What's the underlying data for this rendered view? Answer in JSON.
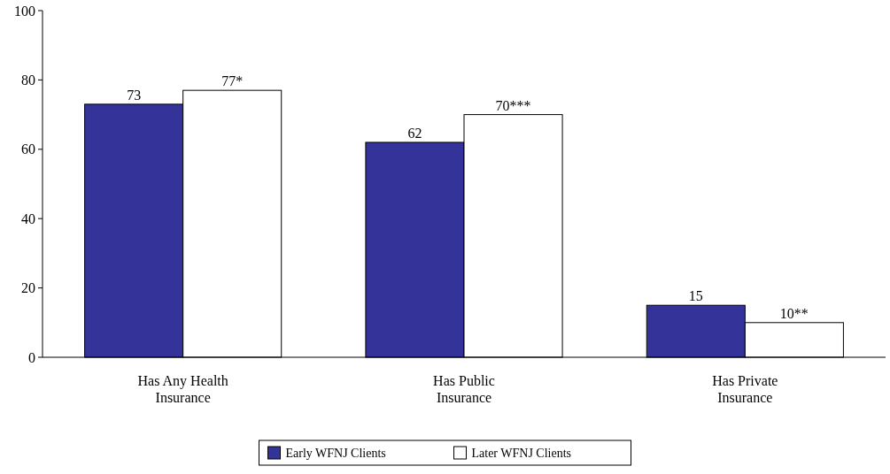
{
  "chart_data": {
    "type": "bar",
    "categories": [
      "Has Any Health Insurance",
      "Has Public Insurance",
      "Has Private Insurance"
    ],
    "series": [
      {
        "name": "Early WFNJ Clients",
        "color": "#333399",
        "values": [
          73,
          62,
          15
        ],
        "value_labels": [
          "73",
          "62",
          "15"
        ]
      },
      {
        "name": "Later WFNJ Clients",
        "color": "#ffffff",
        "values": [
          77,
          70,
          10
        ],
        "value_labels": [
          "77*",
          "70***",
          "10**"
        ]
      }
    ],
    "ylim": [
      0,
      100
    ],
    "yticks": [
      0,
      20,
      40,
      60,
      80,
      100
    ],
    "grid": false,
    "legend": "bottom"
  }
}
